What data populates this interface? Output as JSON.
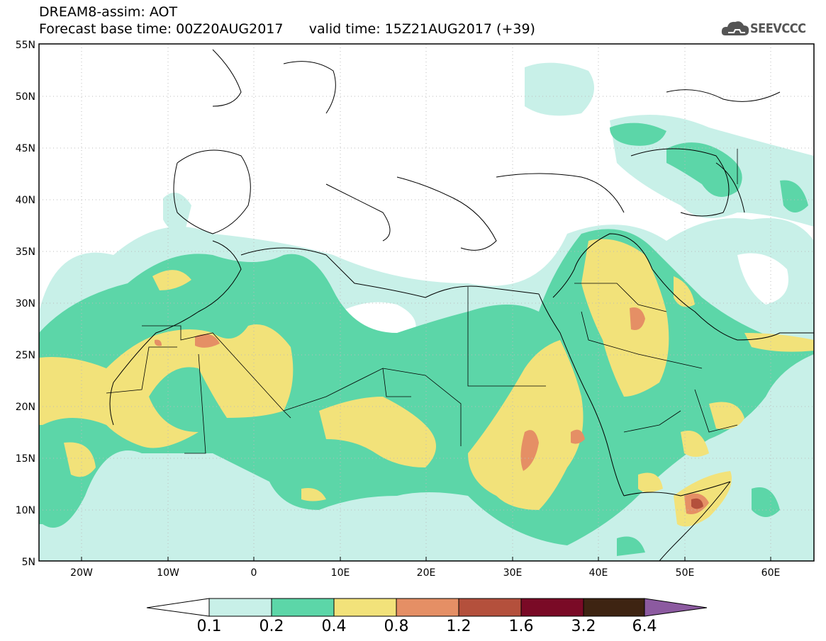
{
  "header": {
    "line1": "DREAM8-assim: AOT",
    "line2": "Forecast base time: 00Z20AUG2017      valid time: 15Z21AUG2017 (+39)"
  },
  "logo": {
    "text": "SEEVCCC",
    "icon": "cloud-logo-icon"
  },
  "map": {
    "lat_labels": [
      "55N",
      "50N",
      "45N",
      "40N",
      "35N",
      "30N",
      "25N",
      "20N",
      "15N",
      "10N",
      "5N"
    ],
    "lon_labels": [
      "20W",
      "10W",
      "0",
      "10E",
      "20E",
      "30E",
      "40E",
      "50E",
      "60E"
    ]
  },
  "colorbar": {
    "levels": [
      "0.1",
      "0.2",
      "0.4",
      "0.8",
      "1.2",
      "1.6",
      "3.2",
      "6.4"
    ],
    "colors": [
      "#ffffff",
      "#c8f0e8",
      "#5cd6a8",
      "#f2e27a",
      "#e58f65",
      "#b4503c",
      "#7a0a26",
      "#3e2412",
      "#8c5aa0"
    ]
  }
}
